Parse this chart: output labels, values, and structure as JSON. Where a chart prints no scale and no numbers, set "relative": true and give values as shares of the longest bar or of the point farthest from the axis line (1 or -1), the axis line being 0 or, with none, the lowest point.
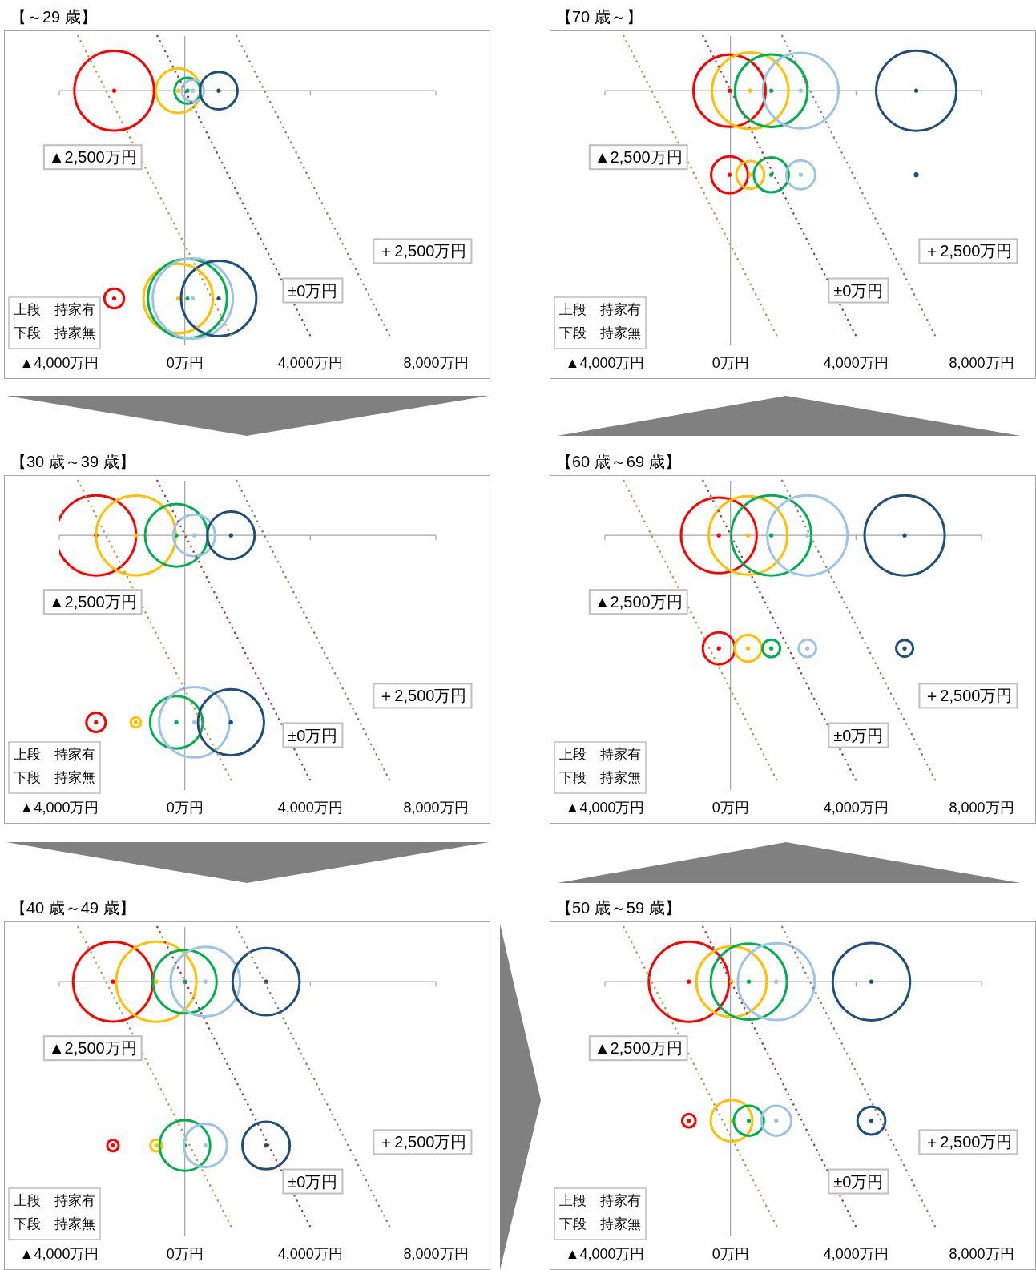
{
  "chart_data": [
    {
      "type": "bubble",
      "title": "【～29 歳】",
      "relative": true,
      "xlim": [
        -4000,
        8000
      ],
      "xticks": [
        {
          "value": -4000,
          "label": "▲4,000万円"
        },
        {
          "value": 0,
          "label": "0万円"
        },
        {
          "value": 4000,
          "label": "4,000万円"
        },
        {
          "value": 8000,
          "label": "8,000万円"
        }
      ],
      "annotations": [
        "上段　持家有",
        "下段　持家無"
      ],
      "series": [
        {
          "color": "#ff0000",
          "x": [
            -2250,
            -2250
          ],
          "values": [
            0,
            -0.837
          ],
          "sizes": [
            0.99,
            0.06
          ]
        },
        {
          "color": "#ffc000",
          "x": [
            -210,
            -210
          ],
          "values": [
            0,
            -0.837
          ],
          "sizes": [
            0.31,
            0.75
          ]
        },
        {
          "color": "#00b050",
          "x": [
            85,
            85
          ],
          "values": [
            0,
            -0.837
          ],
          "sizes": [
            0.105,
            0.97
          ]
        },
        {
          "color": "#9dc3e6",
          "x": [
            255,
            255
          ],
          "values": [
            0,
            -0.837
          ],
          "sizes": [
            0.076,
            1
          ]
        },
        {
          "color": "#1f4e79",
          "x": [
            1080,
            1080
          ],
          "values": [
            0,
            -0.837
          ],
          "sizes": [
            0.22,
            0.88
          ]
        },
        {
          "type": "line",
          "name": "▲2,500万円",
          "color": "#b59b50",
          "line_style": "dotted",
          "x": [
            -3400,
            1530
          ],
          "values": [
            0.22,
            -1
          ]
        },
        {
          "type": "line",
          "name": "±0万円",
          "color": "#a0404a",
          "line_style": "dotted",
          "x": [
            -875,
            4050
          ],
          "values": [
            0.22,
            -1
          ]
        },
        {
          "type": "line",
          "name": "＋2,500万円",
          "color": "#808a70",
          "line_style": "dotted",
          "x": [
            1650,
            6580
          ],
          "values": [
            0.22,
            -1
          ]
        }
      ]
    },
    {
      "type": "bubble",
      "title": "【70 歳～】",
      "relative": true,
      "xlim": [
        -4000,
        8000
      ],
      "xticks": [
        {
          "value": -4000,
          "label": "▲4,000万円"
        },
        {
          "value": 0,
          "label": "0万円"
        },
        {
          "value": 4000,
          "label": "4,000万円"
        },
        {
          "value": 8000,
          "label": "8,000万円"
        }
      ],
      "annotations": [
        "上段　持家有",
        "下段　持家無"
      ],
      "series": [
        {
          "color": "#ff0000",
          "x": [
            -30,
            -30
          ],
          "values": [
            0,
            -0.339
          ],
          "sizes": [
            0.81,
            0.21
          ]
        },
        {
          "color": "#ffc000",
          "x": [
            630,
            630
          ],
          "values": [
            0,
            -0.339
          ],
          "sizes": [
            0.91,
            0.12
          ]
        },
        {
          "color": "#00b050",
          "x": [
            1300,
            1300
          ],
          "values": [
            0,
            -0.339
          ],
          "sizes": [
            0.82,
            0.19
          ]
        },
        {
          "color": "#9dc3e6",
          "x": [
            2240,
            2240
          ],
          "values": [
            0,
            -0.339
          ],
          "sizes": [
            0.89,
            0.13
          ]
        },
        {
          "color": "#1f4e79",
          "x": [
            5920,
            5920
          ],
          "values": [
            0,
            -0.339
          ],
          "sizes": [
            1,
            0.001
          ]
        },
        {
          "type": "line",
          "name": "▲2,500万円",
          "color": "#b59b50",
          "line_style": "dotted",
          "x": [
            -3400,
            1530
          ],
          "values": [
            0.22,
            -1
          ]
        },
        {
          "type": "line",
          "name": "±0万円",
          "color": "#a0404a",
          "line_style": "dotted",
          "x": [
            -875,
            4050
          ],
          "values": [
            0.22,
            -1
          ]
        },
        {
          "type": "line",
          "name": "＋2,500万円",
          "color": "#808a70",
          "line_style": "dotted",
          "x": [
            1650,
            6580
          ],
          "values": [
            0.22,
            -1
          ]
        }
      ]
    },
    {
      "type": "bubble",
      "title": "【30 歳～39 歳】",
      "relative": true,
      "xlim": [
        -4000,
        8000
      ],
      "xticks": [
        {
          "value": -4000,
          "label": "▲4,000万円"
        },
        {
          "value": 0,
          "label": "0万円"
        },
        {
          "value": 4000,
          "label": "4,000万円"
        },
        {
          "value": 8000,
          "label": "8,000万円"
        }
      ],
      "annotations": [
        "上段　持家有",
        "下段　持家無"
      ],
      "series": [
        {
          "color": "#ff0000",
          "x": [
            -2830,
            -2830
          ],
          "values": [
            0,
            -0.753
          ],
          "sizes": [
            1,
            0.058
          ]
        },
        {
          "color": "#ffc000",
          "x": [
            -1560,
            -1560
          ],
          "values": [
            0,
            -0.753
          ],
          "sizes": [
            0.99,
            0.016
          ]
        },
        {
          "color": "#00b050",
          "x": [
            -270,
            -270
          ],
          "values": [
            0,
            -0.753
          ],
          "sizes": [
            0.61,
            0.43
          ]
        },
        {
          "color": "#9dc3e6",
          "x": [
            300,
            300
          ],
          "values": [
            0,
            -0.753
          ],
          "sizes": [
            0.27,
            0.77
          ]
        },
        {
          "color": "#1f4e79",
          "x": [
            1470,
            1470
          ],
          "values": [
            0,
            -0.753
          ],
          "sizes": [
            0.35,
            0.68
          ]
        },
        {
          "type": "line",
          "name": "▲2,500万円",
          "color": "#b59b50",
          "line_style": "dotted",
          "x": [
            -3400,
            1530
          ],
          "values": [
            0.22,
            -1
          ]
        },
        {
          "type": "line",
          "name": "±0万円",
          "color": "#a0404a",
          "line_style": "dotted",
          "x": [
            -875,
            4050
          ],
          "values": [
            0.22,
            -1
          ]
        },
        {
          "type": "line",
          "name": "＋2,500万円",
          "color": "#808a70",
          "line_style": "dotted",
          "x": [
            1650,
            6580
          ],
          "values": [
            0.22,
            -1
          ]
        }
      ]
    },
    {
      "type": "bubble",
      "title": "【60 歳～69 歳】",
      "relative": true,
      "xlim": [
        -4000,
        8000
      ],
      "xticks": [
        {
          "value": -4000,
          "label": "▲4,000万円"
        },
        {
          "value": 0,
          "label": "0万円"
        },
        {
          "value": 4000,
          "label": "4,000万円"
        },
        {
          "value": 8000,
          "label": "8,000万円"
        }
      ],
      "annotations": [
        "上段　持家有",
        "下段　持家無"
      ],
      "series": [
        {
          "color": "#ff0000",
          "x": [
            -370,
            -370
          ],
          "values": [
            0,
            -0.455
          ],
          "sizes": [
            0.89,
            0.16
          ]
        },
        {
          "color": "#ffc000",
          "x": [
            560,
            560
          ],
          "values": [
            0,
            -0.455
          ],
          "sizes": [
            0.96,
            0.11
          ]
        },
        {
          "color": "#00b050",
          "x": [
            1300,
            1300
          ],
          "values": [
            0,
            -0.455
          ],
          "sizes": [
            1,
            0.048
          ]
        },
        {
          "color": "#9dc3e6",
          "x": [
            2450,
            2450
          ],
          "values": [
            0,
            -0.455
          ],
          "sizes": [
            1,
            0.047
          ]
        },
        {
          "color": "#1f4e79",
          "x": [
            5550,
            5550
          ],
          "values": [
            0,
            -0.455
          ],
          "sizes": [
            1,
            0.044
          ]
        },
        {
          "type": "line",
          "name": "▲2,500万円",
          "color": "#b59b50",
          "line_style": "dotted",
          "x": [
            -3400,
            1530
          ],
          "values": [
            0.22,
            -1
          ]
        },
        {
          "type": "line",
          "name": "±0万円",
          "color": "#a0404a",
          "line_style": "dotted",
          "x": [
            -875,
            4050
          ],
          "values": [
            0.22,
            -1
          ]
        },
        {
          "type": "line",
          "name": "＋2,500万円",
          "color": "#808a70",
          "line_style": "dotted",
          "x": [
            1650,
            6580
          ],
          "values": [
            0.22,
            -1
          ]
        }
      ]
    },
    {
      "type": "bubble",
      "title": "【40 歳～49 歳】",
      "relative": true,
      "xlim": [
        -4000,
        8000
      ],
      "xticks": [
        {
          "value": -4000,
          "label": "▲4,000万円"
        },
        {
          "value": 0,
          "label": "0万円"
        },
        {
          "value": 4000,
          "label": "4,000万円"
        },
        {
          "value": 8000,
          "label": "8,000万円"
        }
      ],
      "annotations": [
        "上段　持家有",
        "下段　持家無"
      ],
      "series": [
        {
          "color": "#ff0000",
          "x": [
            -2290,
            -2290
          ],
          "values": [
            0,
            -0.66
          ],
          "sizes": [
            0.99,
            0.02
          ]
        },
        {
          "color": "#ffc000",
          "x": [
            -910,
            -910
          ],
          "values": [
            0,
            -0.66
          ],
          "sizes": [
            1,
            0.022
          ]
        },
        {
          "color": "#00b050",
          "x": [
            0,
            0
          ],
          "values": [
            0,
            -0.66
          ],
          "sizes": [
            0.63,
            0.4
          ]
        },
        {
          "color": "#9dc3e6",
          "x": [
            655,
            655
          ],
          "values": [
            0,
            -0.66
          ],
          "sizes": [
            0.75,
            0.29
          ]
        },
        {
          "color": "#1f4e79",
          "x": [
            2590,
            2590
          ],
          "values": [
            0,
            -0.66
          ],
          "sizes": [
            0.7,
            0.35
          ]
        },
        {
          "type": "line",
          "name": "▲2,500万円",
          "color": "#b59b50",
          "line_style": "dotted",
          "x": [
            -3400,
            1530
          ],
          "values": [
            0.22,
            -1
          ]
        },
        {
          "type": "line",
          "name": "±0万円",
          "color": "#a0404a",
          "line_style": "dotted",
          "x": [
            -875,
            4050
          ],
          "values": [
            0.22,
            -1
          ]
        },
        {
          "type": "line",
          "name": "＋2,500万円",
          "color": "#808a70",
          "line_style": "dotted",
          "x": [
            1650,
            6580
          ],
          "values": [
            0.22,
            -1
          ]
        }
      ]
    },
    {
      "type": "bubble",
      "title": "【50 歳～59 歳】",
      "relative": true,
      "xlim": [
        -4000,
        8000
      ],
      "xticks": [
        {
          "value": -4000,
          "label": "▲4,000万円"
        },
        {
          "value": 0,
          "label": "0万円"
        },
        {
          "value": 4000,
          "label": "4,000万円"
        },
        {
          "value": 8000,
          "label": "8,000万円"
        }
      ],
      "annotations": [
        "上段　持家有",
        "下段　持家無"
      ],
      "series": [
        {
          "color": "#ff0000",
          "x": [
            -1325,
            -1325
          ],
          "values": [
            0,
            -0.56
          ],
          "sizes": [
            1,
            0.028
          ]
        },
        {
          "color": "#ffc000",
          "x": [
            35,
            35
          ],
          "values": [
            0,
            -0.56
          ],
          "sizes": [
            0.77,
            0.27
          ]
        },
        {
          "color": "#00b050",
          "x": [
            585,
            585
          ],
          "values": [
            0,
            -0.56
          ],
          "sizes": [
            0.9,
            0.14
          ]
        },
        {
          "color": "#9dc3e6",
          "x": [
            1460,
            1460
          ],
          "values": [
            0,
            -0.56
          ],
          "sizes": [
            0.92,
            0.14
          ]
        },
        {
          "color": "#1f4e79",
          "x": [
            4490,
            4490
          ],
          "values": [
            0,
            -0.56
          ],
          "sizes": [
            0.93,
            0.12
          ]
        },
        {
          "type": "line",
          "name": "▲2,500万円",
          "color": "#b59b50",
          "line_style": "dotted",
          "x": [
            -3400,
            1530
          ],
          "values": [
            0.22,
            -1
          ]
        },
        {
          "type": "line",
          "name": "±0万円",
          "color": "#a0404a",
          "line_style": "dotted",
          "x": [
            -875,
            4050
          ],
          "values": [
            0.22,
            -1
          ]
        },
        {
          "type": "line",
          "name": "＋2,500万円",
          "color": "#808a70",
          "line_style": "dotted",
          "x": [
            1650,
            6580
          ],
          "values": [
            0.22,
            -1
          ]
        }
      ]
    }
  ]
}
